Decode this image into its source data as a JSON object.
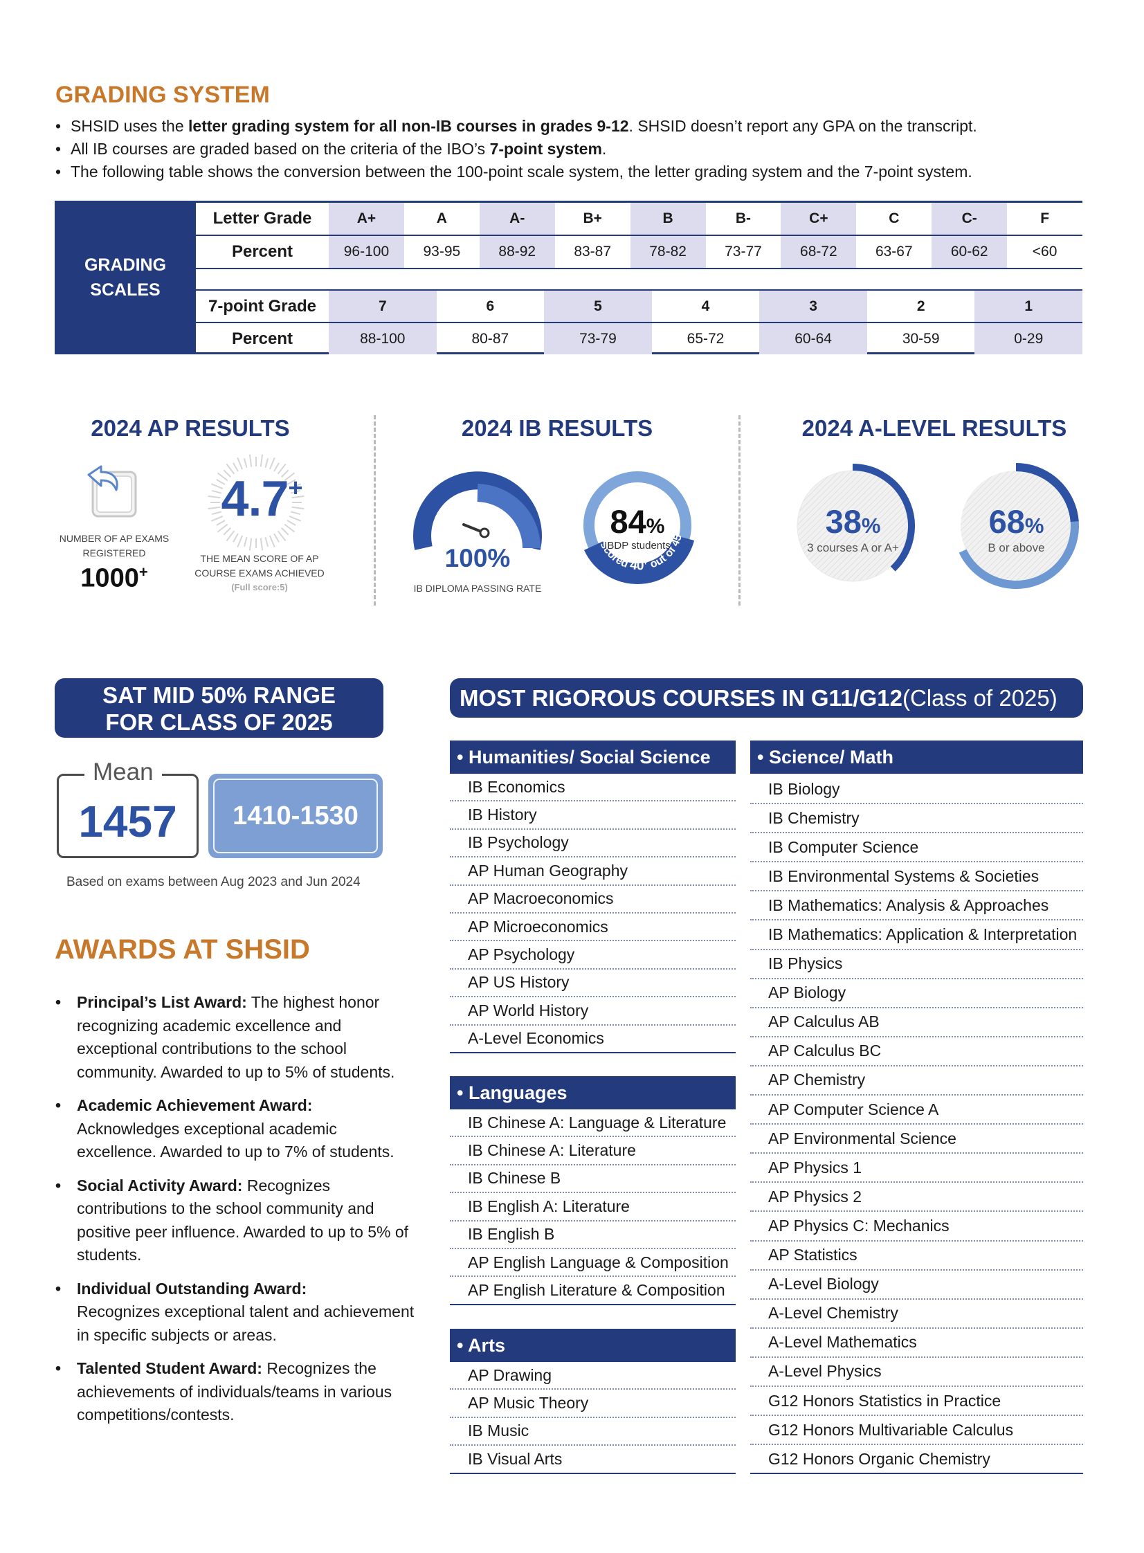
{
  "grading": {
    "title": "GRADING SYSTEM",
    "bullet1_pre": "SHSID uses the ",
    "bullet1_bold": "letter grading system for all non-IB courses in grades 9-12",
    "bullet1_post": ". SHSID doesn’t report any GPA on the transcript.",
    "bullet2_pre": "All IB courses are graded based on the criteria of the IBO’s ",
    "bullet2_bold": "7-point system",
    "bullet2_post": ".",
    "bullet3": "The following table shows the conversion between the 100-point scale system, the letter grading system and the 7-point system.",
    "side_label_1": "GRADING",
    "side_label_2": "SCALES",
    "letter_label": "Letter Grade",
    "percent_label": "Percent",
    "seven_label": "7-point Grade",
    "letters": [
      "A+",
      "A",
      "A-",
      "B+",
      "B",
      "B-",
      "C+",
      "C",
      "C-",
      "F"
    ],
    "letter_percents": [
      "96-100",
      "93-95",
      "88-92",
      "83-87",
      "78-82",
      "73-77",
      "68-72",
      "63-67",
      "60-62",
      "<60"
    ],
    "points": [
      "7",
      "6",
      "5",
      "4",
      "3",
      "2",
      "1"
    ],
    "point_percents": [
      "88-100",
      "80-87",
      "73-79",
      "65-72",
      "60-64",
      "30-59",
      "0-29"
    ]
  },
  "ap": {
    "title": "2024 AP RESULTS",
    "exams_label_1": "NUMBER OF AP EXAMS",
    "exams_label_2": "REGISTERED",
    "exams_value": "1000",
    "exams_sup": "+",
    "mean_value": "4.7",
    "mean_sup": "+",
    "mean_label_1": "THE MEAN SCORE OF AP",
    "mean_label_2": "COURSE EXAMS ACHIEVED",
    "mean_note": "(Full score:5)"
  },
  "ib": {
    "title": "2024 IB RESULTS",
    "pass_value": "100%",
    "pass_label": "IB DIPLOMA PASSING RATE",
    "students_value": "84",
    "students_pct": "%",
    "students_label": "IBDP students",
    "arc_text_1": "scored ",
    "arc_text_2": "40",
    "arc_text_3": "+",
    "arc_text_4": " out of 45"
  },
  "alevel": {
    "title": "2024 A-LEVEL RESULTS",
    "v1": "38",
    "v1_pct": "%",
    "v1_label": "3 courses A or A+",
    "v2": "68",
    "v2_pct": "%",
    "v2_label": "B or above"
  },
  "sat": {
    "banner_1": "SAT MID 50% RANGE",
    "banner_2": "FOR CLASS OF 2025",
    "mean_label": "Mean",
    "mean_value": "1457",
    "range": "1410-1530",
    "note": "Based on exams between Aug 2023 and Jun 2024"
  },
  "awards": {
    "title": "AWARDS AT SHSID",
    "items": [
      {
        "name": "Principal’s List Award:",
        "desc": " The highest honor recognizing academic excellence and exceptional contributions to the school community. Awarded to up to 5% of students."
      },
      {
        "name": "Academic Achievement Award:",
        "desc": " Acknowledges exceptional academic excellence. Awarded to up to 7% of students."
      },
      {
        "name": "Social Activity Award:",
        "desc": " Recognizes contributions to the school community and positive peer influence. Awarded to up to 5% of students."
      },
      {
        "name": "Individual Outstanding Award:",
        "desc": " Recognizes exceptional talent and achievement in specific subjects or areas."
      },
      {
        "name": "Talented Student Award:",
        "desc": " Recognizes the achievements of individuals/teams in various competitions/contests."
      }
    ]
  },
  "courses": {
    "banner_bold": "MOST RIGOROUS COURSES IN G11/G12",
    "banner_rest": " (Class of 2025)",
    "humanities": {
      "title": "• Humanities/ Social Science",
      "items": [
        "IB Economics",
        "IB History",
        "IB Psychology",
        "AP Human Geography",
        "AP Macroeconomics",
        "AP Microeconomics",
        "AP Psychology",
        "AP US History",
        "AP World History",
        "A-Level Economics"
      ]
    },
    "languages": {
      "title": "• Languages",
      "items": [
        "IB Chinese A: Language & Literature",
        "IB Chinese A: Literature",
        "IB Chinese B",
        "IB English A: Literature",
        "IB English B",
        "AP English Language & Composition",
        "AP English Literature & Composition"
      ]
    },
    "arts": {
      "title": "• Arts",
      "items": [
        "AP Drawing",
        "AP Music Theory",
        "IB Music",
        "IB Visual Arts"
      ]
    },
    "science": {
      "title": "• Science/ Math",
      "items": [
        "IB Biology",
        "IB Chemistry",
        "IB Computer Science",
        "IB Environmental Systems & Societies",
        "IB Mathematics: Analysis & Approaches",
        "IB Mathematics: Application & Interpretation",
        "IB Physics",
        "AP Biology",
        "AP Calculus AB",
        "AP Calculus BC",
        "AP Chemistry",
        "AP Computer Science A",
        "AP Environmental Science",
        "AP Physics 1",
        "AP Physics 2",
        "AP Physics C: Mechanics",
        "AP Statistics",
        "A-Level Biology",
        "A-Level Chemistry",
        "A-Level Mathematics",
        "A-Level Physics",
        "G12 Honors Statistics in Practice",
        "G12 Honors Multivariable Calculus",
        "G12 Honors Organic Chemistry"
      ]
    }
  }
}
